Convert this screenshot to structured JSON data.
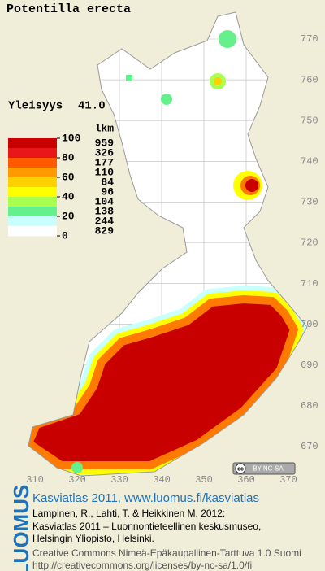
{
  "title": "Potentilla erecta",
  "frequency": {
    "label": "Yleisyys",
    "value": "41.0"
  },
  "legend": {
    "count_header": "lkm",
    "scale_ticks": [
      100,
      80,
      60,
      40,
      20,
      0
    ],
    "counts": [
      959,
      326,
      177,
      110,
      84,
      96,
      104,
      138,
      244,
      829
    ],
    "colors": [
      "#c80000",
      "#e81818",
      "#ff5a00",
      "#ff9a00",
      "#ffd000",
      "#ffff00",
      "#a8ff50",
      "#66f08c",
      "#c8ffff",
      "#ffffff"
    ]
  },
  "grid": {
    "y_labels": [
      770,
      760,
      750,
      740,
      730,
      720,
      710,
      700,
      690,
      680,
      670
    ],
    "x_labels": [
      310,
      320,
      330,
      340,
      350,
      360,
      370
    ]
  },
  "badge": {
    "cc": "cc",
    "text": "BY-NC-SA"
  },
  "footer": {
    "brand": "LUOMUS",
    "headline": "Kasviatlas 2011, www.luomus.fi/kasviatlas",
    "citation": [
      "Lampinen, R., Lahti, T. & Heikkinen M. 2012:",
      "Kasviatlas 2011 – Luonnontieteellinen keskusmuseo,",
      "Helsingin Yliopisto, Helsinki."
    ],
    "license": [
      "Creative Commons Nimeä-Epäkaupallinen-Tarttuva 1.0 Suomi",
      "http://creativecommons.org/licenses/by-nc-sa/1.0/fi"
    ]
  }
}
